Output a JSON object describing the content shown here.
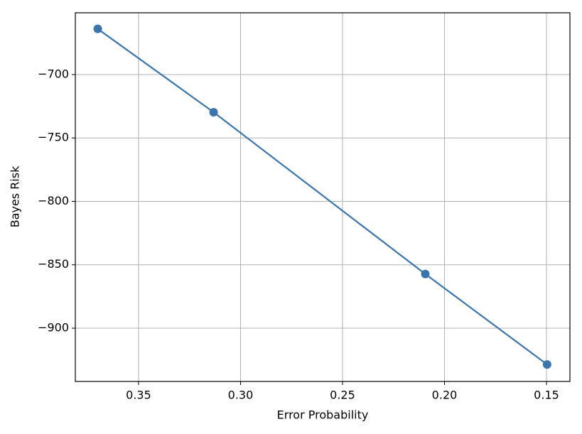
{
  "chart_data": {
    "type": "line",
    "x_label": "Error Probability",
    "y_label": "Bayes Risk",
    "series": [
      {
        "name": "Bayes Risk",
        "color": "#3a75ae",
        "x": [
          0.37,
          0.3132,
          0.2094,
          0.1497
        ],
        "values": [
          -664,
          -729.7,
          -857.3,
          -928.6
        ]
      }
    ],
    "xlim": [
      0.381,
      0.1385
    ],
    "xticks": [
      0.35,
      {
        "value": 0.3,
        "label": "0.30"
      },
      0.25,
      {
        "value": 0.2,
        "label": "0.20"
      },
      0.15
    ],
    "ylim": [
      -942,
      -651.3
    ],
    "yticks": [
      {
        "value": -700,
        "label": "−700"
      },
      {
        "value": -750,
        "label": "−750"
      },
      {
        "value": -800,
        "label": "−800"
      },
      {
        "value": -850,
        "label": "−850"
      },
      {
        "value": -900,
        "label": "−900"
      }
    ],
    "grid": true
  }
}
